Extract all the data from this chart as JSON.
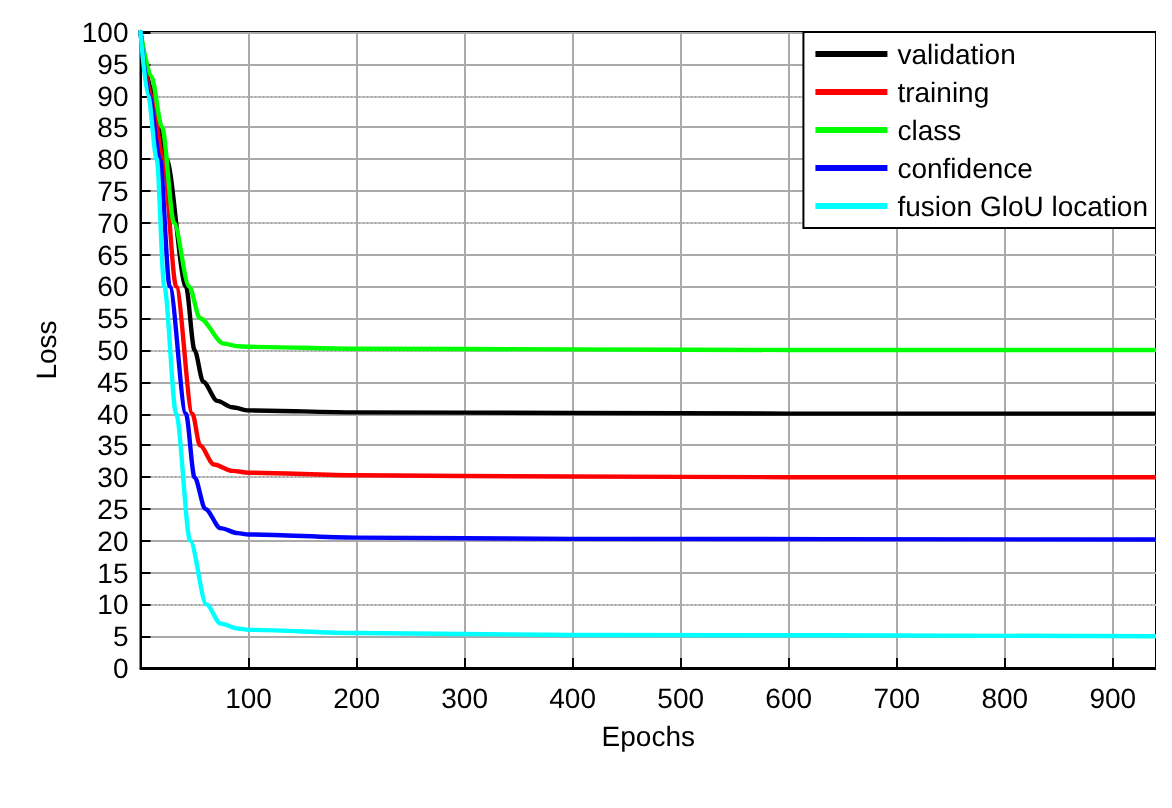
{
  "chart_data": {
    "type": "line",
    "xlabel": "Epochs",
    "ylabel": "Loss",
    "xlim": [
      0,
      940
    ],
    "xticks": [
      100,
      200,
      300,
      400,
      500,
      600,
      700,
      800,
      900
    ],
    "ylim": [
      0,
      100
    ],
    "yticks": [
      0,
      5,
      10,
      15,
      20,
      25,
      30,
      35,
      40,
      45,
      50,
      55,
      60,
      65,
      70,
      75,
      80,
      85,
      90,
      95,
      100
    ],
    "grid": true,
    "legend": "top right",
    "marker": "none",
    "line_style": "solid",
    "series": [
      {
        "name": "validation",
        "color": "#000000",
        "x": [
          0,
          10,
          24,
          42,
          50,
          58,
          71,
          85,
          100,
          200,
          400,
          600,
          940
        ],
        "values": [
          100,
          91,
          80,
          60,
          50,
          45,
          42,
          41,
          40.5,
          40.2,
          40.1,
          40,
          40
        ]
      },
      {
        "name": "training",
        "color": "#ff0000",
        "x": [
          0,
          10,
          21,
          33,
          48,
          55,
          68,
          85,
          100,
          200,
          400,
          600,
          940
        ],
        "values": [
          100,
          90,
          80,
          60,
          40,
          35,
          32,
          31,
          30.7,
          30.3,
          30.1,
          30,
          30
        ]
      },
      {
        "name": "class",
        "color": "#00ff00",
        "x": [
          0,
          10,
          20,
          31,
          45,
          55,
          77,
          90,
          100,
          200,
          400,
          600,
          940
        ],
        "values": [
          100,
          93,
          85,
          70,
          60,
          55,
          51,
          50.6,
          50.5,
          50.2,
          50.1,
          50,
          50
        ]
      },
      {
        "name": "confidence",
        "color": "#0000ff",
        "x": [
          0,
          8,
          18,
          27,
          42,
          50,
          60,
          74,
          90,
          100,
          200,
          400,
          940
        ],
        "values": [
          100,
          90,
          80,
          60,
          40,
          30,
          25,
          22,
          21.2,
          21,
          20.5,
          20.3,
          20.2
        ]
      },
      {
        "name": "fusion GloU location",
        "color": "#00ffff",
        "x": [
          0,
          7,
          15,
          22,
          33,
          46,
          61,
          74,
          90,
          100,
          200,
          400,
          940
        ],
        "values": [
          100,
          90,
          80,
          60,
          40,
          20,
          10,
          7,
          6.2,
          6,
          5.5,
          5.2,
          5
        ]
      }
    ]
  }
}
